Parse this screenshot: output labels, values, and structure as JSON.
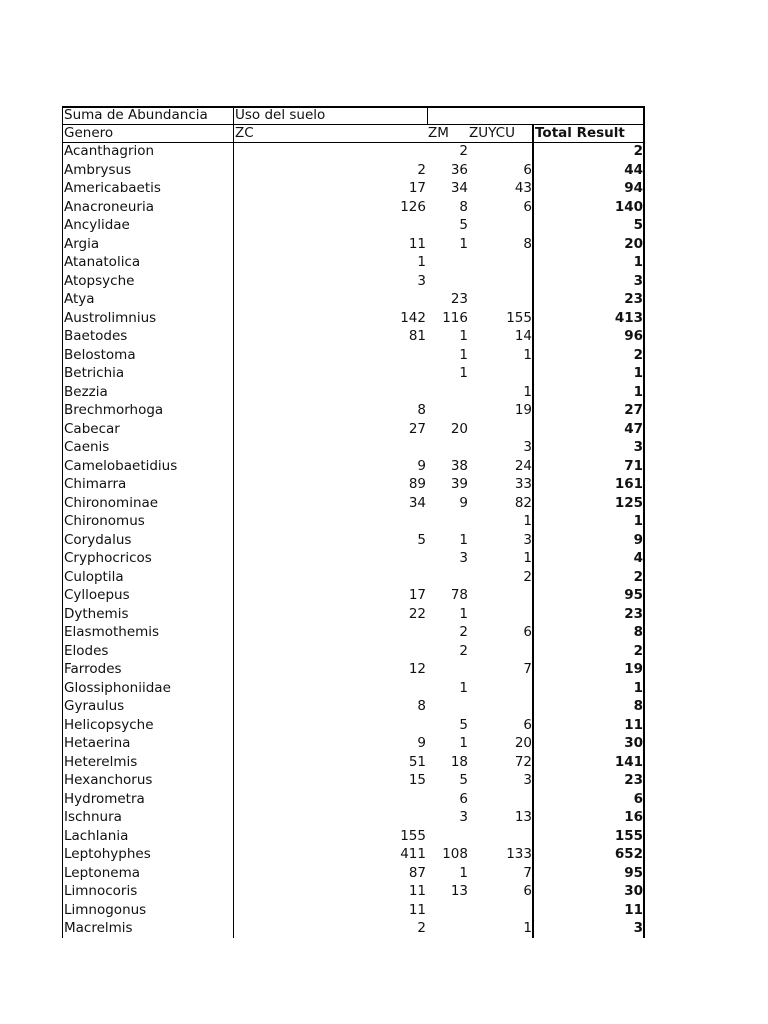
{
  "pivot": {
    "data_field": "Suma de Abundancia",
    "column_field": "Uso del suelo",
    "row_field": "Genero",
    "columns": [
      "ZC",
      "ZM",
      "ZUYCU"
    ],
    "total_label": "Total Result",
    "rows": [
      {
        "genero": "Acanthagrion",
        "ZC": null,
        "ZM": 2,
        "ZUYCU": null,
        "total": 2
      },
      {
        "genero": "Ambrysus",
        "ZC": 2,
        "ZM": 36,
        "ZUYCU": 6,
        "total": 44
      },
      {
        "genero": "Americabaetis",
        "ZC": 17,
        "ZM": 34,
        "ZUYCU": 43,
        "total": 94
      },
      {
        "genero": "Anacroneuria",
        "ZC": 126,
        "ZM": 8,
        "ZUYCU": 6,
        "total": 140
      },
      {
        "genero": "Ancylidae",
        "ZC": null,
        "ZM": 5,
        "ZUYCU": null,
        "total": 5
      },
      {
        "genero": "Argia",
        "ZC": 11,
        "ZM": 1,
        "ZUYCU": 8,
        "total": 20
      },
      {
        "genero": "Atanatolica",
        "ZC": 1,
        "ZM": null,
        "ZUYCU": null,
        "total": 1
      },
      {
        "genero": "Atopsyche",
        "ZC": 3,
        "ZM": null,
        "ZUYCU": null,
        "total": 3
      },
      {
        "genero": "Atya",
        "ZC": null,
        "ZM": 23,
        "ZUYCU": null,
        "total": 23
      },
      {
        "genero": "Austrolimnius",
        "ZC": 142,
        "ZM": 116,
        "ZUYCU": 155,
        "total": 413
      },
      {
        "genero": "Baetodes",
        "ZC": 81,
        "ZM": 1,
        "ZUYCU": 14,
        "total": 96
      },
      {
        "genero": "Belostoma",
        "ZC": null,
        "ZM": 1,
        "ZUYCU": 1,
        "total": 2
      },
      {
        "genero": "Betrichia",
        "ZC": null,
        "ZM": 1,
        "ZUYCU": null,
        "total": 1
      },
      {
        "genero": "Bezzia",
        "ZC": null,
        "ZM": null,
        "ZUYCU": 1,
        "total": 1
      },
      {
        "genero": "Brechmorhoga",
        "ZC": 8,
        "ZM": null,
        "ZUYCU": 19,
        "total": 27
      },
      {
        "genero": "Cabecar",
        "ZC": 27,
        "ZM": 20,
        "ZUYCU": null,
        "total": 47
      },
      {
        "genero": "Caenis",
        "ZC": null,
        "ZM": null,
        "ZUYCU": 3,
        "total": 3
      },
      {
        "genero": "Camelobaetidius",
        "ZC": 9,
        "ZM": 38,
        "ZUYCU": 24,
        "total": 71
      },
      {
        "genero": "Chimarra",
        "ZC": 89,
        "ZM": 39,
        "ZUYCU": 33,
        "total": 161
      },
      {
        "genero": "Chironominae",
        "ZC": 34,
        "ZM": 9,
        "ZUYCU": 82,
        "total": 125
      },
      {
        "genero": "Chironomus",
        "ZC": null,
        "ZM": null,
        "ZUYCU": 1,
        "total": 1
      },
      {
        "genero": "Corydalus",
        "ZC": 5,
        "ZM": 1,
        "ZUYCU": 3,
        "total": 9
      },
      {
        "genero": "Cryphocricos",
        "ZC": null,
        "ZM": 3,
        "ZUYCU": 1,
        "total": 4
      },
      {
        "genero": "Culoptila",
        "ZC": null,
        "ZM": null,
        "ZUYCU": 2,
        "total": 2
      },
      {
        "genero": "Cylloepus",
        "ZC": 17,
        "ZM": 78,
        "ZUYCU": null,
        "total": 95
      },
      {
        "genero": "Dythemis",
        "ZC": 22,
        "ZM": 1,
        "ZUYCU": null,
        "total": 23
      },
      {
        "genero": "Elasmothemis",
        "ZC": null,
        "ZM": 2,
        "ZUYCU": 6,
        "total": 8
      },
      {
        "genero": "Elodes",
        "ZC": null,
        "ZM": 2,
        "ZUYCU": null,
        "total": 2
      },
      {
        "genero": "Farrodes",
        "ZC": 12,
        "ZM": null,
        "ZUYCU": 7,
        "total": 19
      },
      {
        "genero": "Glossiphoniidae",
        "ZC": null,
        "ZM": 1,
        "ZUYCU": null,
        "total": 1
      },
      {
        "genero": "Gyraulus",
        "ZC": 8,
        "ZM": null,
        "ZUYCU": null,
        "total": 8
      },
      {
        "genero": "Helicopsyche",
        "ZC": null,
        "ZM": 5,
        "ZUYCU": 6,
        "total": 11
      },
      {
        "genero": "Hetaerina",
        "ZC": 9,
        "ZM": 1,
        "ZUYCU": 20,
        "total": 30
      },
      {
        "genero": "Heterelmis",
        "ZC": 51,
        "ZM": 18,
        "ZUYCU": 72,
        "total": 141
      },
      {
        "genero": "Hexanchorus",
        "ZC": 15,
        "ZM": 5,
        "ZUYCU": 3,
        "total": 23
      },
      {
        "genero": "Hydrometra",
        "ZC": null,
        "ZM": 6,
        "ZUYCU": null,
        "total": 6
      },
      {
        "genero": "Ischnura",
        "ZC": null,
        "ZM": 3,
        "ZUYCU": 13,
        "total": 16
      },
      {
        "genero": "Lachlania",
        "ZC": 155,
        "ZM": null,
        "ZUYCU": null,
        "total": 155
      },
      {
        "genero": "Leptohyphes",
        "ZC": 411,
        "ZM": 108,
        "ZUYCU": 133,
        "total": 652
      },
      {
        "genero": "Leptonema",
        "ZC": 87,
        "ZM": 1,
        "ZUYCU": 7,
        "total": 95
      },
      {
        "genero": "Limnocoris",
        "ZC": 11,
        "ZM": 13,
        "ZUYCU": 6,
        "total": 30
      },
      {
        "genero": "Limnogonus",
        "ZC": 11,
        "ZM": null,
        "ZUYCU": null,
        "total": 11
      },
      {
        "genero": "Macrelmis",
        "ZC": 2,
        "ZM": null,
        "ZUYCU": 1,
        "total": 3
      }
    ]
  }
}
